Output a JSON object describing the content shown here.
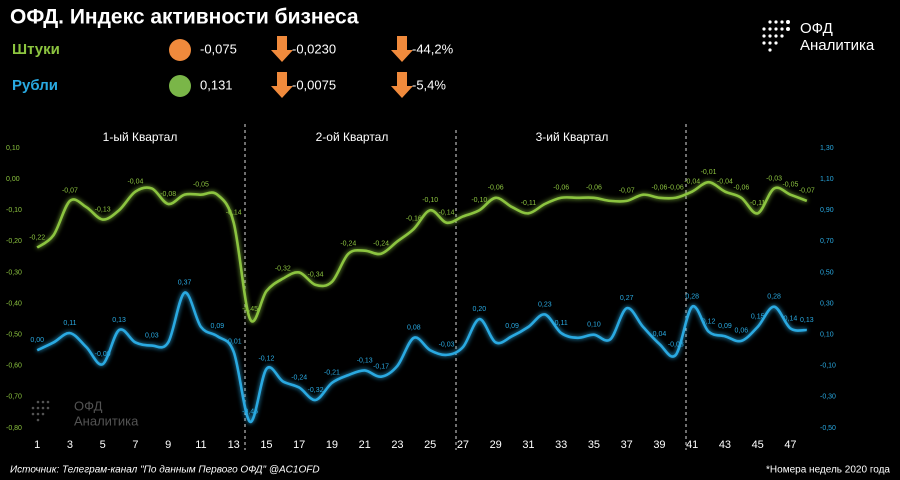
{
  "chart_data": {
    "type": "line",
    "title": "ОФД. Индекс активности бизнеса",
    "annotations": [
      "1-ый Квартал",
      "2-ой Квартал",
      "3-ий Квартал"
    ],
    "x": [
      1,
      2,
      3,
      4,
      5,
      6,
      7,
      8,
      9,
      10,
      11,
      12,
      13,
      14,
      15,
      16,
      17,
      18,
      19,
      20,
      21,
      22,
      23,
      24,
      25,
      26,
      27,
      28,
      29,
      30,
      31,
      32,
      33,
      34,
      35,
      36,
      37,
      38,
      39,
      40,
      41,
      42,
      43,
      44,
      45,
      46,
      47,
      48
    ],
    "xlim": [
      0.5,
      48.5
    ],
    "xticks": [
      1,
      3,
      5,
      7,
      9,
      11,
      13,
      15,
      17,
      19,
      21,
      23,
      25,
      27,
      29,
      31,
      33,
      35,
      37,
      39,
      41,
      43,
      45,
      47
    ],
    "ylim": [
      -0.8,
      0.1
    ],
    "yticks": [
      {
        "value": 0.1,
        "label": "0,10"
      },
      {
        "value": 0,
        "label": "0,00"
      },
      {
        "value": -0.1,
        "label": "-0,10"
      },
      {
        "value": -0.2,
        "label": "-0,20"
      },
      {
        "value": -0.3,
        "label": "-0,30"
      },
      {
        "value": -0.4,
        "label": "-0,40"
      },
      {
        "value": -0.5,
        "label": "-0,50"
      },
      {
        "value": -0.6,
        "label": "-0,60"
      },
      {
        "value": -0.7,
        "label": "-0,70"
      },
      {
        "value": -0.8,
        "label": "-0,80"
      }
    ],
    "y2lim": [
      -0.5,
      1.3
    ],
    "y2ticks": [
      {
        "value": 1.3,
        "label": "1,30"
      },
      {
        "value": 1.1,
        "label": "1,10"
      },
      {
        "value": 0.9,
        "label": "0,90"
      },
      {
        "value": 0.7,
        "label": "0,70"
      },
      {
        "value": 0.5,
        "label": "0,50"
      },
      {
        "value": 0.3,
        "label": "0,30"
      },
      {
        "value": 0.1,
        "label": "0,10"
      },
      {
        "value": -0.1,
        "label": "-0,10"
      },
      {
        "value": -0.3,
        "label": "-0,30"
      },
      {
        "value": -0.5,
        "label": "-0,50"
      }
    ],
    "grid": false,
    "series": [
      {
        "name": "Штуки",
        "color": "#8cc43f",
        "values": [
          -0.22,
          -0.18,
          -0.07,
          -0.09,
          -0.13,
          -0.1,
          -0.04,
          -0.03,
          -0.08,
          -0.05,
          -0.05,
          -0.05,
          -0.14,
          -0.45,
          -0.36,
          -0.32,
          -0.3,
          -0.34,
          -0.33,
          -0.24,
          -0.23,
          -0.24,
          -0.2,
          -0.16,
          -0.1,
          -0.14,
          -0.12,
          -0.1,
          -0.06,
          -0.09,
          -0.11,
          -0.08,
          -0.06,
          -0.06,
          -0.06,
          -0.07,
          -0.07,
          -0.05,
          -0.06,
          -0.06,
          -0.04,
          -0.01,
          -0.04,
          -0.06,
          -0.11,
          -0.03,
          -0.05,
          -0.07
        ],
        "value_labels": [
          "-0,22",
          null,
          "-0,07",
          null,
          "-0,13",
          null,
          "-0,04",
          null,
          "-0,08",
          null,
          "-0,05",
          null,
          "-0,14",
          "-0,45",
          null,
          "-0,32",
          null,
          "-0,34",
          null,
          "-0,24",
          null,
          "-0,24",
          null,
          "-0,16",
          "-0,10",
          "-0,14",
          null,
          "-0,10",
          "-0,06",
          null,
          "-0,11",
          null,
          "-0,06",
          null,
          "-0,06",
          null,
          "-0,07",
          null,
          "-0,06",
          "-0,06",
          "-0,04",
          "-0,01",
          "-0,04",
          "-0,06",
          "-0,11",
          "-0,03",
          "-0,05",
          "-0,07"
        ]
      },
      {
        "name": "Рубли",
        "color": "#29a9e1",
        "axis": "y2",
        "values": [
          0.0,
          0.05,
          0.11,
          0.02,
          -0.09,
          0.13,
          0.05,
          0.03,
          0.05,
          0.37,
          0.15,
          0.09,
          -0.01,
          -0.46,
          -0.12,
          -0.2,
          -0.24,
          -0.32,
          -0.21,
          -0.16,
          -0.13,
          -0.17,
          -0.1,
          0.08,
          0.0,
          -0.03,
          0.02,
          0.2,
          0.05,
          0.09,
          0.15,
          0.23,
          0.11,
          0.08,
          0.1,
          0.07,
          0.27,
          0.15,
          0.04,
          -0.03,
          0.28,
          0.12,
          0.09,
          0.06,
          0.15,
          0.28,
          0.14,
          0.13
        ],
        "value_labels": [
          "0,00",
          null,
          "0,11",
          null,
          "-0,09",
          "0,13",
          null,
          "0,03",
          null,
          "0,37",
          null,
          "0,09",
          "-0,01",
          "-0,46",
          "-0,12",
          null,
          "-0,24",
          "-0,32",
          "-0,21",
          null,
          "-0,13",
          "-0,17",
          null,
          "0,08",
          null,
          "-0,03",
          null,
          "0,20",
          null,
          "0,09",
          null,
          "0,23",
          "0,11",
          null,
          "0,10",
          null,
          "0,27",
          null,
          "0,04",
          "-0,03",
          "0,28",
          "0,12",
          "0,09",
          "0,06",
          "0,15",
          "0,28",
          "0,14",
          "0,13"
        ]
      }
    ]
  },
  "summary": [
    {
      "dot_color": "#f08a3c",
      "value": "-0,075",
      "change": "-0,0230",
      "change_pct": "-44,2%"
    },
    {
      "dot_color": "#7ab648",
      "value": "0,131",
      "change": "-0,0075",
      "change_pct": "-5,4%"
    }
  ],
  "brand": [
    "ОФД",
    "Аналитика"
  ],
  "source": "Источник: Телеграм-канал \"По данным Первого ОФД\" @AC1OFD",
  "footnote": "*Номера недель 2020 года"
}
